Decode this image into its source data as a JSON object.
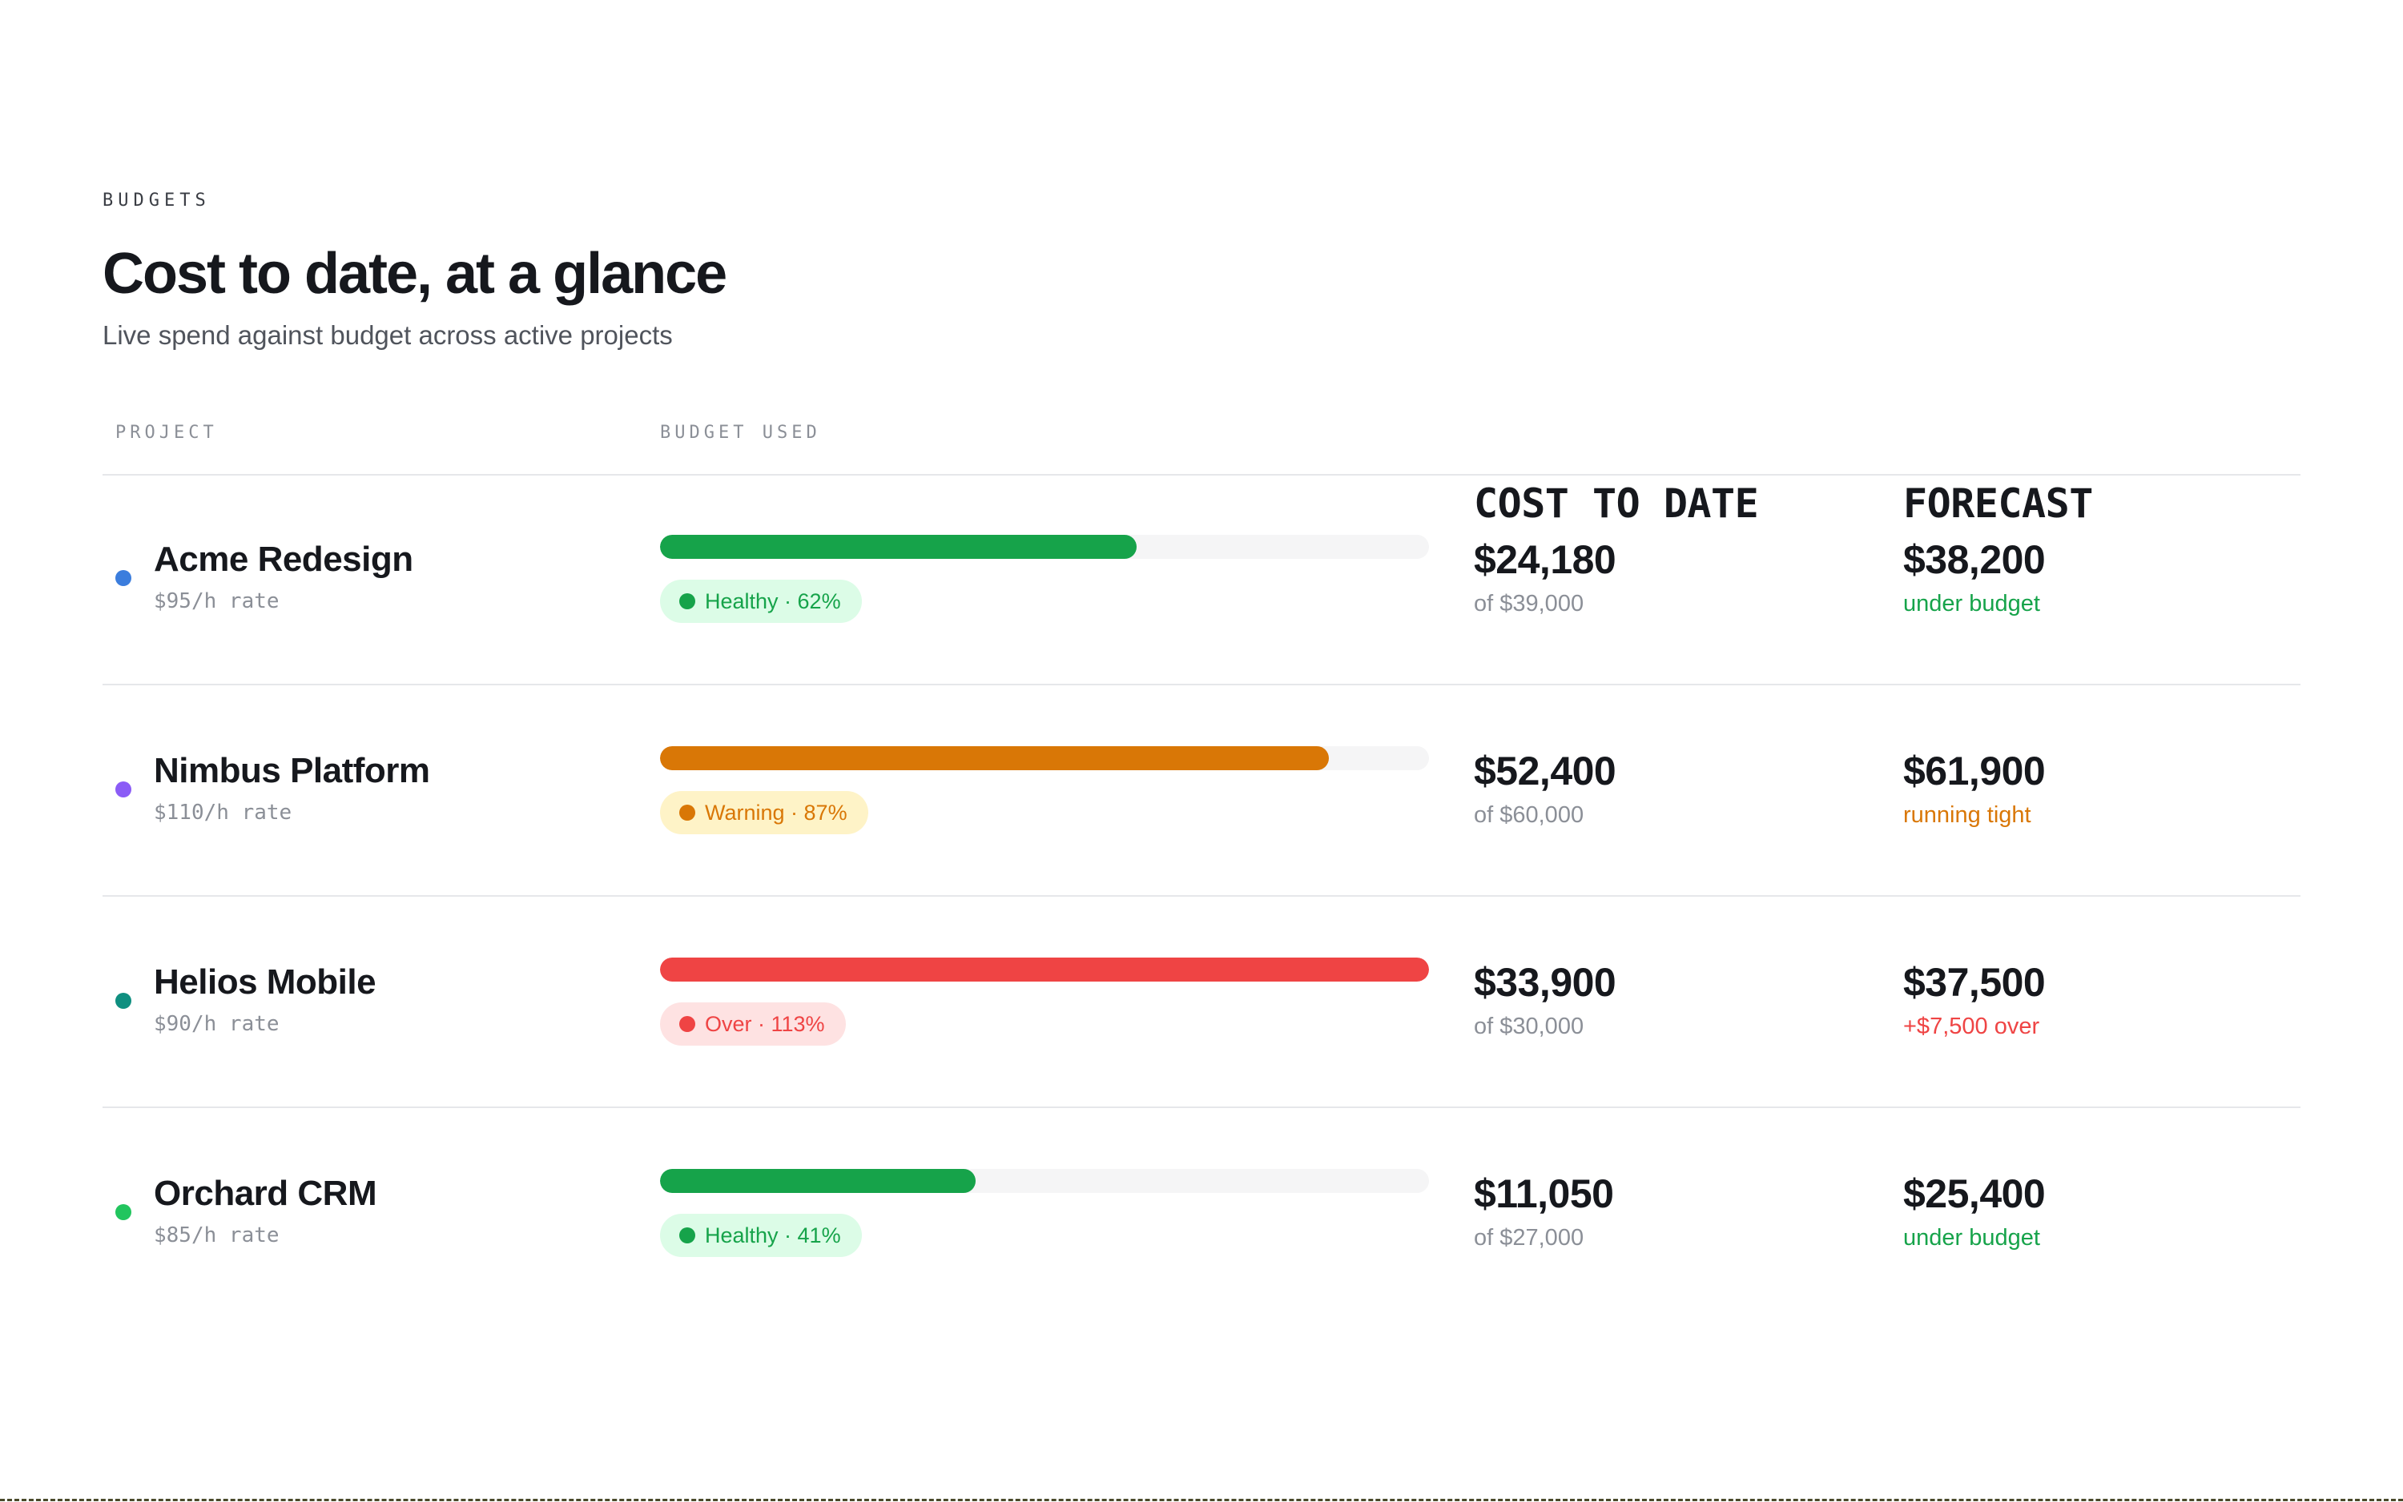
{
  "header": {
    "eyebrow": "BUDGETS",
    "title": "Cost to date, at a glance",
    "subtitle": "Live spend against budget across active projects"
  },
  "columns": {
    "project": "PROJECT",
    "budget_used": "BUDGET USED",
    "cost_to_date": "COST TO DATE",
    "forecast": "FORECAST"
  },
  "colors": {
    "healthy": "#16a34a",
    "healthy_bg": "#dcfce7",
    "warning": "#d97706",
    "warning_bg": "#fef3c7",
    "over": "#ef4444",
    "over_bg": "#fee2e2"
  },
  "projects": [
    {
      "name": "Acme Redesign",
      "rate": "$95/h rate",
      "dot_color": "#3b7ddd",
      "budget_used_fraction": 0.62,
      "status": "healthy",
      "badge": "Healthy · 62%",
      "cost": "$24,180",
      "of_budget": "of $39,000",
      "forecast": "$38,200",
      "forecast_note": "under budget"
    },
    {
      "name": "Nimbus Platform",
      "rate": "$110/h rate",
      "dot_color": "#8b5cf6",
      "budget_used_fraction": 0.87,
      "status": "warning",
      "badge": "Warning · 87%",
      "cost": "$52,400",
      "of_budget": "of $60,000",
      "forecast": "$61,900",
      "forecast_note": "running tight"
    },
    {
      "name": "Helios Mobile",
      "rate": "$90/h rate",
      "dot_color": "#0f8f80",
      "budget_used_fraction": 1.13,
      "status": "over",
      "badge": "Over · 113%",
      "cost": "$33,900",
      "of_budget": "of $30,000",
      "forecast": "$37,500",
      "forecast_note": "+$7,500 over"
    },
    {
      "name": "Orchard CRM",
      "rate": "$85/h rate",
      "dot_color": "#22c55e",
      "budget_used_fraction": 0.41,
      "status": "healthy",
      "badge": "Healthy · 41%",
      "cost": "$11,050",
      "of_budget": "of $27,000",
      "forecast": "$25,400",
      "forecast_note": "under budget"
    }
  ]
}
